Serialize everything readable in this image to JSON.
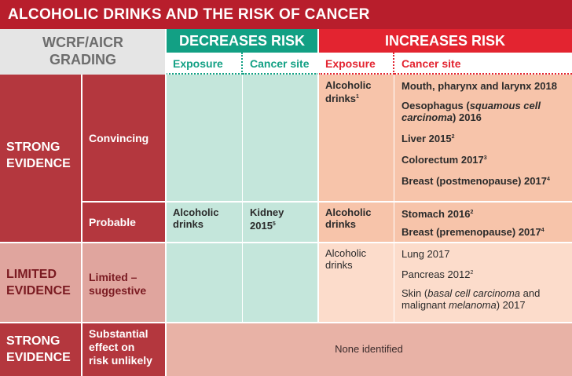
{
  "title": "ALCOHOLIC DRINKS AND THE RISK OF CANCER",
  "header": {
    "grading_line1": "WCRF/AICR",
    "grading_line2": "GRADING",
    "decreases": "DECREASES RISK",
    "increases": "INCREASES RISK",
    "exposure": "Exposure",
    "cancer_site": "Cancer site"
  },
  "rows": {
    "strong": {
      "evidence_line1": "STRONG",
      "evidence_line2": "EVIDENCE",
      "convincing": {
        "grade": "Convincing",
        "inc_exposure": "Alcoholic drinks",
        "inc_exposure_sup": "1",
        "inc_sites": [
          {
            "text": "Mouth, pharynx and larynx 2018",
            "sup": ""
          },
          {
            "pre": "Oesophagus (",
            "italic": "squamous cell carcinoma",
            "post": ") 2016"
          },
          {
            "text": "Liver 2015",
            "sup": "2"
          },
          {
            "text": "Colorectum 2017",
            "sup": "3"
          },
          {
            "text": "Breast (postmenopause) 2017",
            "sup": "4"
          }
        ]
      },
      "probable": {
        "grade": "Probable",
        "dec_exposure": "Alcoholic drinks",
        "dec_site": "Kidney 2015",
        "dec_site_sup": "5",
        "inc_exposure": "Alcoholic drinks",
        "inc_sites": [
          {
            "text": "Stomach 2016",
            "sup": "2"
          },
          {
            "text": "Breast (premenopause) 2017",
            "sup": "4"
          }
        ]
      }
    },
    "limited": {
      "evidence_line1": "LIMITED",
      "evidence_line2": "EVIDENCE",
      "grade_line1": "Limited –",
      "grade_line2": "suggestive",
      "inc_exposure": "Alcoholic drinks",
      "inc_sites": [
        {
          "text": "Lung 2017",
          "sup": ""
        },
        {
          "text": "Pancreas 2012",
          "sup": "2"
        },
        {
          "pre": "Skin (",
          "italic": "basal cell carcinoma",
          "mid": " and malignant ",
          "italic2": "melanoma",
          "post": ") 2017"
        }
      ]
    },
    "unlikely": {
      "evidence_line1": "STRONG",
      "evidence_line2": "EVIDENCE",
      "grade_line1": "Substantial",
      "grade_line2": "effect on",
      "grade_line3": "risk unlikely",
      "none": "None identified"
    }
  },
  "colors": {
    "title_bg": "#b81e2c",
    "decreases": "#12a084",
    "increases": "#e32430"
  }
}
